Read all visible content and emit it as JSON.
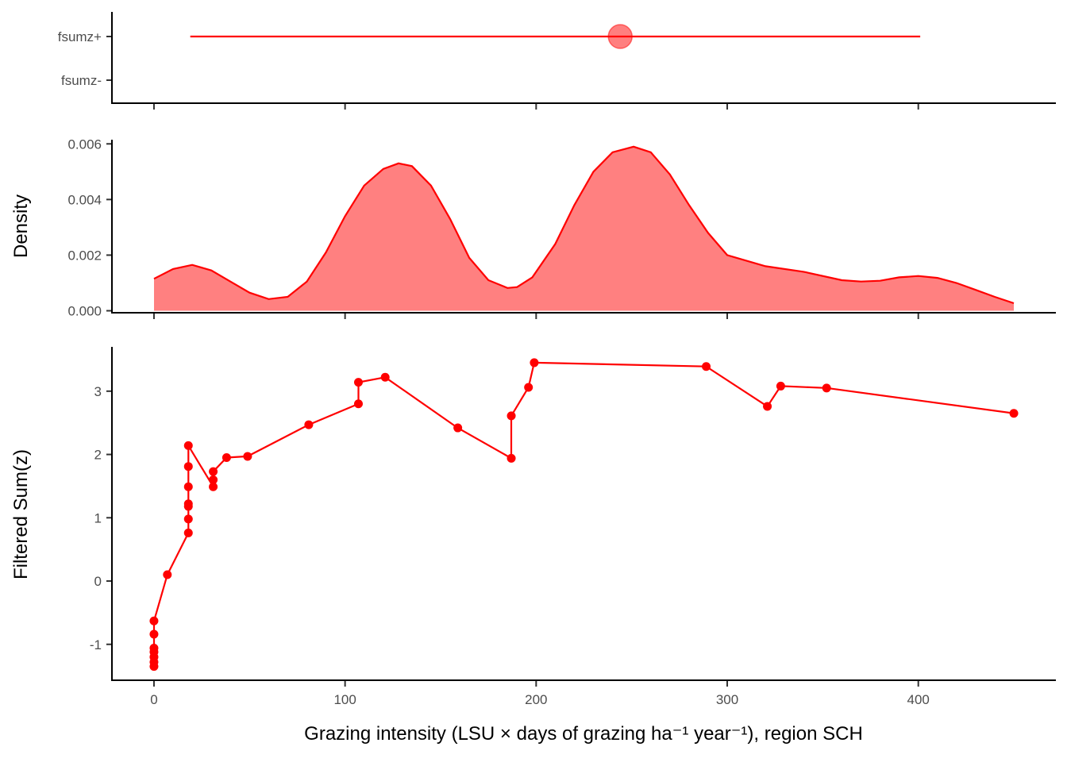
{
  "chart_data": [
    {
      "panel": "interval",
      "type": "scatter",
      "categories": [
        "fsumz+",
        "fsumz-"
      ],
      "segment": {
        "category": "fsumz+",
        "x_start": 19,
        "x_end": 401
      },
      "point": {
        "category": "fsumz+",
        "x": 244
      },
      "xlim": [
        -22,
        472
      ],
      "color": "#ff0000"
    },
    {
      "panel": "density",
      "type": "area",
      "ylabel": "Density",
      "yticks": [
        "0.000",
        "0.002",
        "0.004",
        "0.006"
      ],
      "ytick_values": [
        0,
        0.002,
        0.004,
        0.006
      ],
      "ylim": [
        -0.0001,
        0.00615
      ],
      "xlim": [
        -22,
        472
      ],
      "x": [
        0,
        10,
        20,
        30,
        40,
        50,
        60,
        70,
        80,
        90,
        100,
        110,
        120,
        128,
        135,
        145,
        155,
        165,
        175,
        185,
        190,
        198,
        210,
        220,
        230,
        240,
        251,
        260,
        270,
        280,
        290,
        300,
        320,
        340,
        360,
        370,
        380,
        390,
        400,
        410,
        420,
        430,
        440,
        450
      ],
      "y": [
        0.00115,
        0.0015,
        0.00165,
        0.00145,
        0.00105,
        0.00065,
        0.00042,
        0.0005,
        0.00105,
        0.0021,
        0.0034,
        0.0045,
        0.0051,
        0.0053,
        0.0052,
        0.0045,
        0.0033,
        0.0019,
        0.0011,
        0.00082,
        0.00085,
        0.0012,
        0.0024,
        0.0038,
        0.005,
        0.0057,
        0.0059,
        0.0057,
        0.0049,
        0.0038,
        0.0028,
        0.002,
        0.0016,
        0.0014,
        0.0011,
        0.00105,
        0.00108,
        0.0012,
        0.00125,
        0.00118,
        0.001,
        0.00075,
        0.0005,
        0.00027
      ],
      "fill": "#ff8080",
      "line_color": "#ff0000"
    },
    {
      "panel": "trend",
      "type": "line",
      "xlabel": "Grazing intensity (LSU × days of grazing ha⁻¹ year⁻¹), region SCH",
      "ylabel": "Filtered Sum(z)",
      "yticks": [
        "-1",
        "0",
        "1",
        "2",
        "3"
      ],
      "ytick_values": [
        -1,
        0,
        1,
        2,
        3
      ],
      "xticks": [
        "0",
        "100",
        "200",
        "300",
        "400"
      ],
      "xtick_values": [
        0,
        100,
        200,
        300,
        400
      ],
      "xlim": [
        -22,
        472
      ],
      "ylim": [
        -1.58,
        3.7
      ],
      "x": [
        0,
        0,
        0,
        0,
        0,
        0,
        0,
        7,
        18,
        18,
        18,
        18,
        18,
        18,
        18,
        31,
        31,
        31,
        38,
        49,
        81,
        107,
        107,
        121,
        159,
        187,
        187,
        196,
        199,
        289,
        321,
        328,
        352,
        450
      ],
      "y": [
        -1.35,
        -1.28,
        -1.2,
        -1.12,
        -1.06,
        -0.84,
        -0.63,
        0.1,
        0.76,
        0.98,
        1.18,
        1.22,
        1.49,
        1.81,
        2.14,
        1.49,
        1.6,
        1.73,
        1.95,
        1.97,
        2.47,
        2.8,
        3.14,
        3.22,
        2.42,
        1.94,
        2.61,
        3.06,
        3.45,
        3.39,
        2.76,
        3.08,
        3.05,
        2.65
      ],
      "color": "#ff0000"
    }
  ]
}
